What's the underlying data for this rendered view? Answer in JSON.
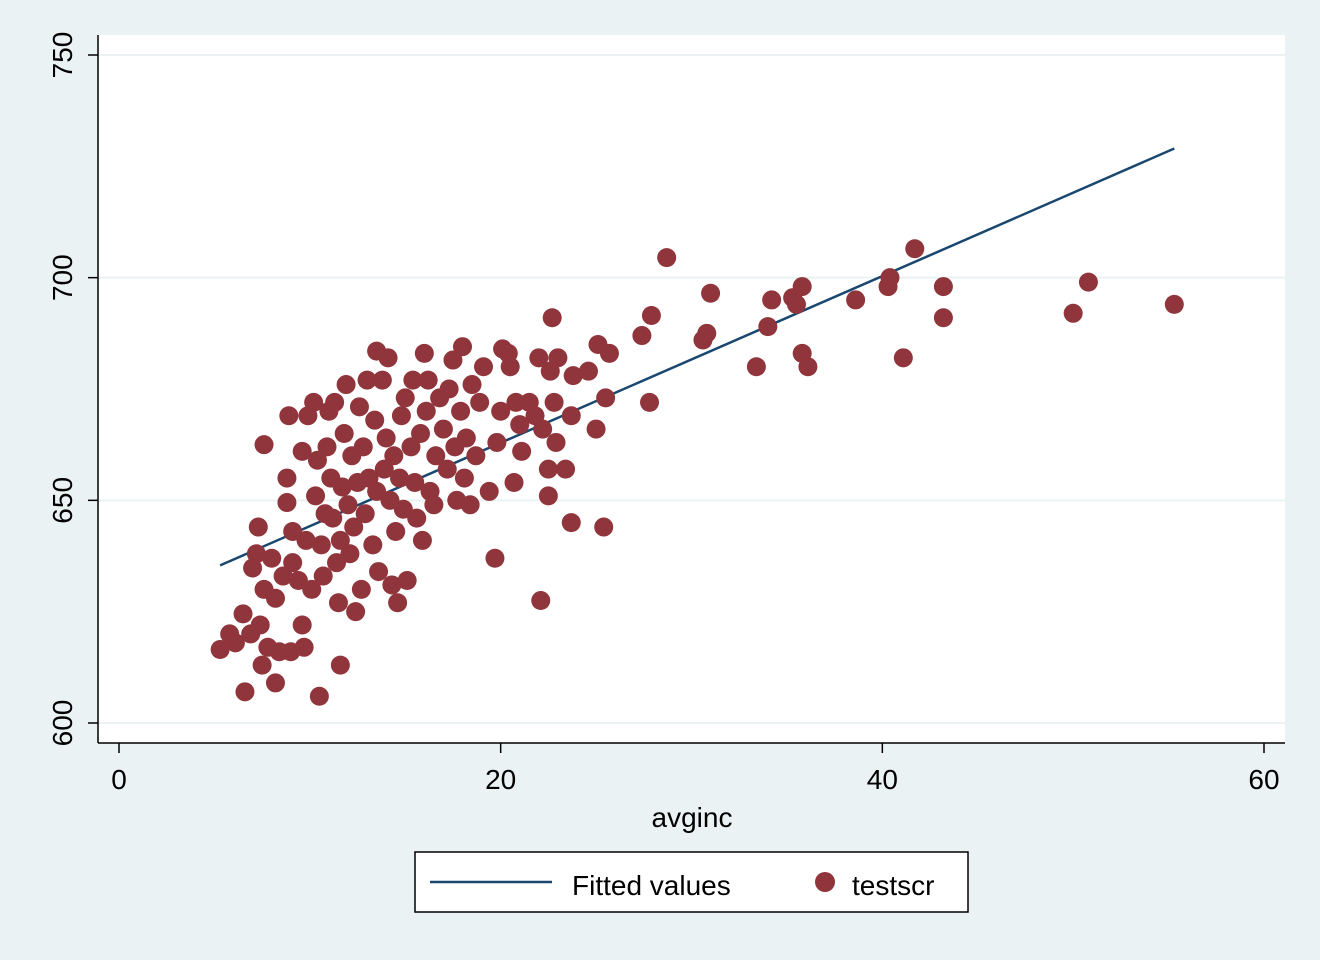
{
  "chart_data": {
    "type": "scatter",
    "xlabel": "avginc",
    "ylabel": "",
    "xlim": [
      0,
      60
    ],
    "ylim": [
      600,
      750
    ],
    "x_ticks": [
      "0",
      "20",
      "40",
      "60"
    ],
    "y_ticks": [
      "600",
      "650",
      "700",
      "750"
    ],
    "grid": true,
    "legend_position": "bottom",
    "colors": {
      "fitted": "#1a476f",
      "points": "#90353b",
      "background": "#eaf2f3",
      "plot_bg": "#ffffff",
      "grid": "#eaf2f3"
    },
    "fitted_line": {
      "name": "Fitted values",
      "x": [
        5.3,
        55.3
      ],
      "y": [
        635.4,
        729.0
      ]
    },
    "scatter": {
      "name": "testscr",
      "points": [
        [
          5.3,
          616.5
        ],
        [
          5.8,
          620
        ],
        [
          6.1,
          618
        ],
        [
          6.5,
          624.5
        ],
        [
          6.6,
          607
        ],
        [
          6.9,
          620
        ],
        [
          7.0,
          634.8
        ],
        [
          7.2,
          638
        ],
        [
          7.3,
          644
        ],
        [
          7.4,
          622
        ],
        [
          7.5,
          613
        ],
        [
          7.6,
          630
        ],
        [
          7.6,
          662.5
        ],
        [
          7.8,
          617
        ],
        [
          8.0,
          637
        ],
        [
          8.2,
          609
        ],
        [
          8.2,
          628
        ],
        [
          8.4,
          616
        ],
        [
          8.6,
          633
        ],
        [
          8.8,
          655
        ],
        [
          8.8,
          649.5
        ],
        [
          8.9,
          669
        ],
        [
          9.0,
          616
        ],
        [
          9.1,
          636
        ],
        [
          9.1,
          643
        ],
        [
          9.4,
          632
        ],
        [
          9.6,
          661
        ],
        [
          9.6,
          622
        ],
        [
          9.7,
          617
        ],
        [
          9.8,
          641
        ],
        [
          9.9,
          669
        ],
        [
          10.1,
          630
        ],
        [
          10.2,
          672
        ],
        [
          10.3,
          651
        ],
        [
          10.4,
          659
        ],
        [
          10.5,
          606
        ],
        [
          10.6,
          640
        ],
        [
          10.7,
          633
        ],
        [
          10.8,
          647
        ],
        [
          10.9,
          662
        ],
        [
          11.0,
          670
        ],
        [
          11.1,
          655
        ],
        [
          11.2,
          646
        ],
        [
          11.3,
          672
        ],
        [
          11.4,
          636
        ],
        [
          11.5,
          627
        ],
        [
          11.6,
          641
        ],
        [
          11.6,
          613
        ],
        [
          11.7,
          653
        ],
        [
          11.8,
          665
        ],
        [
          11.9,
          676
        ],
        [
          12.0,
          649
        ],
        [
          12.1,
          638
        ],
        [
          12.2,
          660
        ],
        [
          12.3,
          644
        ],
        [
          12.4,
          625
        ],
        [
          12.5,
          654
        ],
        [
          12.6,
          671
        ],
        [
          12.7,
          630
        ],
        [
          12.8,
          662
        ],
        [
          12.9,
          647
        ],
        [
          13.0,
          677
        ],
        [
          13.1,
          655
        ],
        [
          13.3,
          640
        ],
        [
          13.4,
          668
        ],
        [
          13.5,
          683.5
        ],
        [
          13.5,
          652
        ],
        [
          13.6,
          634
        ],
        [
          13.8,
          677
        ],
        [
          13.9,
          657
        ],
        [
          14.0,
          664
        ],
        [
          14.1,
          682
        ],
        [
          14.2,
          650
        ],
        [
          14.3,
          631
        ],
        [
          14.4,
          660
        ],
        [
          14.5,
          643
        ],
        [
          14.6,
          627
        ],
        [
          14.7,
          655
        ],
        [
          14.8,
          669
        ],
        [
          14.9,
          648
        ],
        [
          15.0,
          673
        ],
        [
          15.1,
          632
        ],
        [
          15.3,
          662
        ],
        [
          15.4,
          677
        ],
        [
          15.5,
          654
        ],
        [
          15.6,
          646
        ],
        [
          15.8,
          665
        ],
        [
          15.9,
          641
        ],
        [
          16.0,
          683
        ],
        [
          16.1,
          670
        ],
        [
          16.2,
          677
        ],
        [
          16.3,
          652
        ],
        [
          16.5,
          649
        ],
        [
          16.6,
          660
        ],
        [
          16.8,
          673
        ],
        [
          17.0,
          666
        ],
        [
          17.2,
          657
        ],
        [
          17.3,
          675
        ],
        [
          17.5,
          681.5
        ],
        [
          17.6,
          662
        ],
        [
          17.7,
          650
        ],
        [
          17.9,
          670
        ],
        [
          18.0,
          684.5
        ],
        [
          18.1,
          655
        ],
        [
          18.2,
          664
        ],
        [
          18.4,
          649
        ],
        [
          18.5,
          676
        ],
        [
          18.7,
          660
        ],
        [
          18.9,
          672
        ],
        [
          19.1,
          680
        ],
        [
          19.4,
          652
        ],
        [
          19.7,
          637
        ],
        [
          19.8,
          663
        ],
        [
          20.0,
          670
        ],
        [
          20.1,
          684
        ],
        [
          20.4,
          683
        ],
        [
          20.5,
          680
        ],
        [
          20.7,
          654
        ],
        [
          20.8,
          672
        ],
        [
          21.0,
          667
        ],
        [
          21.1,
          661
        ],
        [
          21.5,
          672
        ],
        [
          21.8,
          669
        ],
        [
          22.0,
          682
        ],
        [
          22.1,
          627.5
        ],
        [
          22.2,
          666
        ],
        [
          22.5,
          651
        ],
        [
          22.5,
          657
        ],
        [
          22.6,
          679
        ],
        [
          22.7,
          691
        ],
        [
          22.8,
          672
        ],
        [
          22.9,
          663
        ],
        [
          23.0,
          682
        ],
        [
          23.4,
          657
        ],
        [
          23.7,
          645
        ],
        [
          23.7,
          669
        ],
        [
          23.8,
          678
        ],
        [
          24.6,
          679
        ],
        [
          25.0,
          666
        ],
        [
          25.1,
          685
        ],
        [
          25.4,
          644
        ],
        [
          25.5,
          673
        ],
        [
          25.7,
          683
        ],
        [
          27.4,
          687
        ],
        [
          27.8,
          672
        ],
        [
          27.9,
          691.5
        ],
        [
          28.7,
          704.5
        ],
        [
          30.6,
          686
        ],
        [
          30.8,
          687.5
        ],
        [
          31.0,
          696.5
        ],
        [
          33.4,
          680
        ],
        [
          34.0,
          689
        ],
        [
          34.2,
          695
        ],
        [
          35.3,
          695.5
        ],
        [
          35.5,
          694
        ],
        [
          35.8,
          698
        ],
        [
          35.8,
          683
        ],
        [
          36.1,
          680
        ],
        [
          38.6,
          695
        ],
        [
          40.3,
          698
        ],
        [
          40.4,
          700
        ],
        [
          41.1,
          682
        ],
        [
          41.7,
          706.5
        ],
        [
          43.2,
          698
        ],
        [
          43.2,
          691
        ],
        [
          50.0,
          692
        ],
        [
          50.8,
          699
        ],
        [
          55.3,
          694
        ]
      ]
    },
    "legend": [
      {
        "label": "Fitted values",
        "kind": "line"
      },
      {
        "label": "testscr",
        "kind": "marker"
      }
    ]
  }
}
